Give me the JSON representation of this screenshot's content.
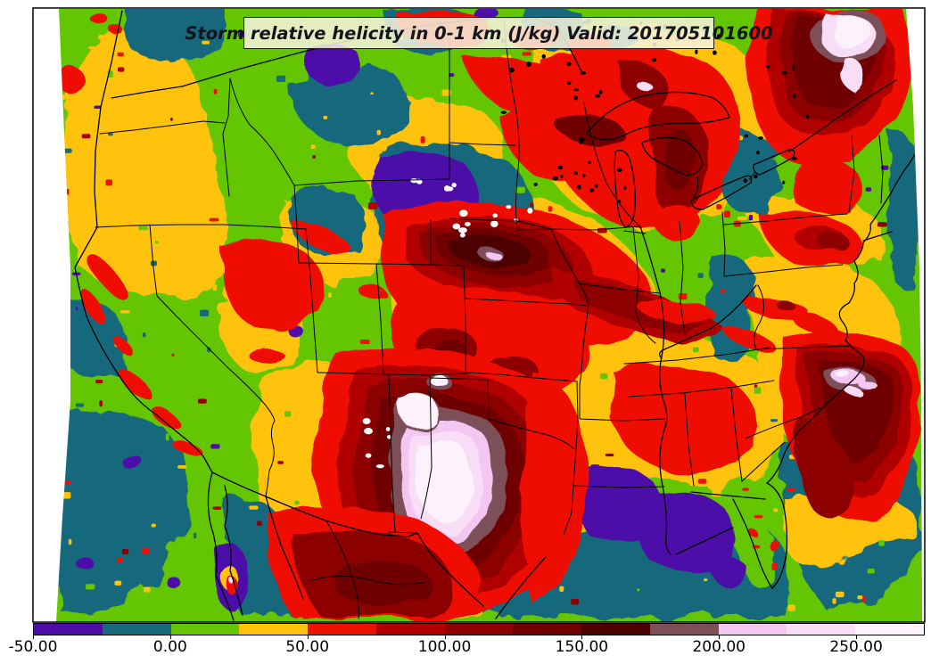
{
  "figure": {
    "title": "Storm relative helicity in 0-1 km (J/kg) Valid: 201705101600",
    "variable": "Storm relative helicity in 0-1 km",
    "units": "J/kg",
    "valid_time": "201705101600"
  },
  "map": {
    "region": "Continental United States with state borders, coastlines and Great Lakes",
    "boundary_color": "#000000",
    "out_of_domain_color": "#ffffff"
  },
  "colorbar": {
    "orientation": "horizontal",
    "tick_labels": [
      "-50.00",
      "0.00",
      "50.00",
      "100.00",
      "150.00",
      "200.00",
      "250.00"
    ],
    "tick_values": [
      -50,
      0,
      50,
      100,
      150,
      200,
      250
    ],
    "range": [
      -50,
      275
    ],
    "levels": [
      -50,
      -25,
      0,
      25,
      50,
      75,
      100,
      125,
      150,
      175,
      200,
      225,
      250,
      275
    ],
    "colors": [
      "#4e0ca8",
      "#17697c",
      "#63c600",
      "#ffc30b",
      "#ee1100",
      "#b00000",
      "#8c0000",
      "#700000",
      "#4d0000",
      "#7d4f59",
      "#f3c7f1",
      "#f8ddf7",
      "#fdf1fc"
    ]
  },
  "chart_data": {
    "type": "heatmap",
    "title": "Storm relative helicity in 0-1 km (J/kg) Valid: 201705101600",
    "units": "J/kg",
    "valid_time": "201705101600",
    "colorbar_levels": [
      -50,
      -25,
      0,
      25,
      50,
      75,
      100,
      125,
      150,
      175,
      200,
      225,
      250,
      275
    ],
    "colorbar_colors": [
      "#4e0ca8",
      "#17697c",
      "#63c600",
      "#ffc30b",
      "#ee1100",
      "#b00000",
      "#8c0000",
      "#700000",
      "#4d0000",
      "#7d4f59",
      "#f3c7f1",
      "#f8ddf7",
      "#fdf1fc"
    ],
    "features": [
      {
        "location": "west Texas",
        "value": "maximum > 250 J/kg (white/pink core inside dark red region)"
      },
      {
        "location": "Nebraska-Iowa border",
        "value": "150-200 J/kg arc with small >200 pink spot"
      },
      {
        "location": "Kansas / Oklahoma",
        "value": "75-150 J/kg pockets"
      },
      {
        "location": "northern Mexico",
        "value": "100-150 J/kg"
      },
      {
        "location": "western Lake Superior and Lake Michigan region",
        "value": "100-150 J/kg"
      },
      {
        "location": "northern New England / southeast Canada",
        "value": "maximum > 225 J/kg (pale pink core)"
      },
      {
        "location": "Atlantic offshore of Carolinas",
        "value": "150-225 J/kg with pink flecks"
      },
      {
        "location": "Gulf of Mexico",
        "value": "negative values -50 to 0 J/kg (purple/teal)"
      },
      {
        "location": "northern plains SD/WY and New Mexico",
        "value": "-50 to -25 J/kg purple patches"
      },
      {
        "location": "most of CONUS background",
        "value": "0-50 J/kg green and gold mottled field"
      }
    ]
  }
}
